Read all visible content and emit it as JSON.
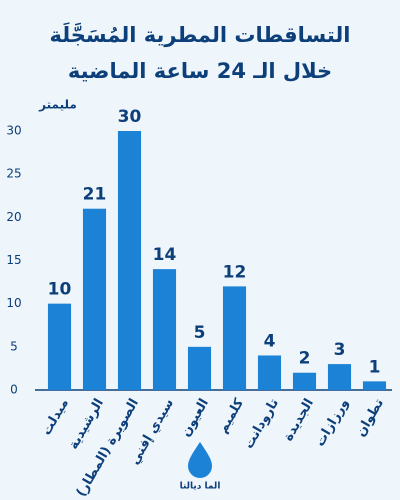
{
  "chart_data": {
    "type": "bar",
    "title": "التساقطات المطرية المُسَجَّلَة",
    "subtitle": "خلال الـ 24 ساعة الماضية",
    "y_label": "مليمتر",
    "categories": [
      "ميدلت",
      "الرشيدية",
      "الصويرة (المطار)",
      "سيدي إفني",
      "العيون",
      "كلميم",
      "تارودانت",
      "الجديدة",
      "ورزازات",
      "تطوان"
    ],
    "values": [
      10,
      21,
      30,
      14,
      5,
      12,
      4,
      2,
      3,
      1
    ],
    "color": "#1b82d6",
    "ylim": [
      0,
      30
    ],
    "yticks": [
      0,
      5,
      10,
      15,
      20,
      25,
      30
    ],
    "grid": false
  },
  "logo": "الما ديالنا"
}
